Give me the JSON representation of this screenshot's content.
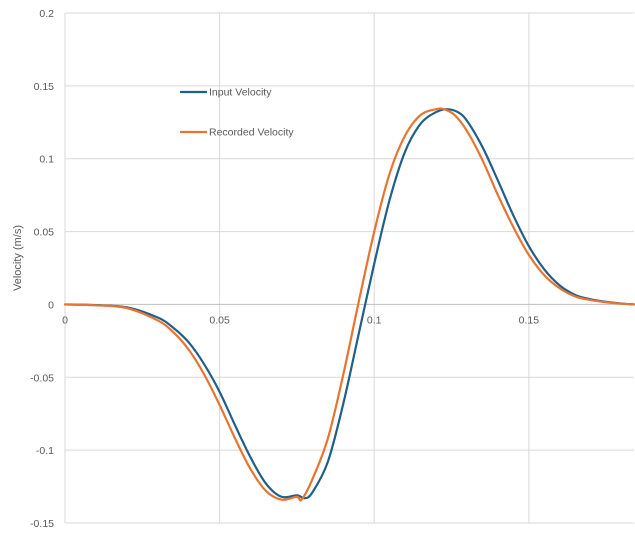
{
  "chart_data": {
    "type": "line",
    "title": "",
    "xlabel": "",
    "ylabel": "Velocity (m/s)",
    "xlim": [
      0,
      0.184
    ],
    "ylim": [
      -0.15,
      0.2
    ],
    "x_ticks": [
      0,
      0.05,
      0.1,
      0.15
    ],
    "x_tick_labels": [
      "0",
      "0.05",
      "0.1",
      "0.15"
    ],
    "y_ticks": [
      -0.15,
      -0.1,
      -0.05,
      0,
      0.05,
      0.1,
      0.15,
      0.2
    ],
    "y_tick_labels": [
      "-0.15",
      "-0.1",
      "-0.05",
      "0",
      "0.05",
      "0.1",
      "0.15",
      "0.2"
    ],
    "grid": true,
    "legend_position": "upper-left inside plot",
    "series": [
      {
        "name": "Input Velocity",
        "color": "#1f5f8b",
        "x": [
          0,
          0.01,
          0.02,
          0.03,
          0.035,
          0.04,
          0.045,
          0.05,
          0.055,
          0.06,
          0.065,
          0.07,
          0.075,
          0.0775,
          0.08,
          0.085,
          0.09,
          0.095,
          0.1,
          0.105,
          0.11,
          0.115,
          0.12,
          0.1235,
          0.127,
          0.13,
          0.135,
          0.14,
          0.145,
          0.15,
          0.155,
          0.16,
          0.165,
          0.17,
          0.175,
          0.18,
          0.184
        ],
        "y": [
          0,
          -0.0005,
          -0.002,
          -0.009,
          -0.016,
          -0.026,
          -0.041,
          -0.06,
          -0.083,
          -0.105,
          -0.123,
          -0.132,
          -0.131,
          -0.133,
          -0.129,
          -0.108,
          -0.068,
          -0.02,
          0.028,
          0.072,
          0.105,
          0.124,
          0.132,
          0.134,
          0.132,
          0.126,
          0.108,
          0.085,
          0.061,
          0.04,
          0.024,
          0.013,
          0.0065,
          0.0035,
          0.0018,
          0.0006,
          0
        ]
      },
      {
        "name": "Recorded Velocity",
        "color": "#e8752f",
        "x": [
          0,
          0.01,
          0.02,
          0.03,
          0.035,
          0.04,
          0.045,
          0.05,
          0.055,
          0.06,
          0.065,
          0.07,
          0.075,
          0.0765,
          0.08,
          0.085,
          0.09,
          0.095,
          0.1,
          0.105,
          0.11,
          0.115,
          0.12,
          0.1225,
          0.126,
          0.13,
          0.135,
          0.14,
          0.145,
          0.15,
          0.155,
          0.16,
          0.165,
          0.17,
          0.175,
          0.18,
          0.184
        ],
        "y": [
          0,
          -0.0006,
          -0.0025,
          -0.011,
          -0.019,
          -0.031,
          -0.048,
          -0.069,
          -0.092,
          -0.113,
          -0.128,
          -0.134,
          -0.132,
          -0.134,
          -0.12,
          -0.092,
          -0.048,
          0.002,
          0.05,
          0.09,
          0.116,
          0.13,
          0.134,
          0.134,
          0.13,
          0.119,
          0.099,
          0.075,
          0.053,
          0.034,
          0.02,
          0.011,
          0.0055,
          0.003,
          0.0015,
          0.0005,
          0
        ]
      }
    ]
  }
}
